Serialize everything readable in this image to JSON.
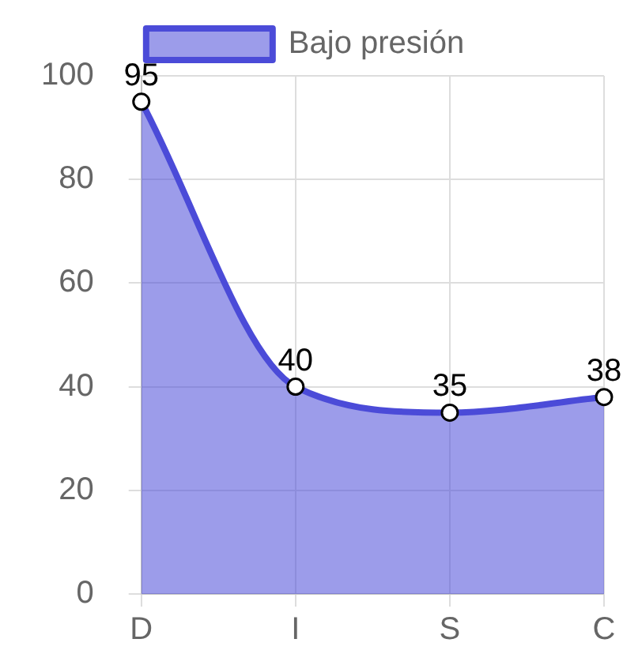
{
  "chart_data": {
    "type": "area",
    "categories": [
      "D",
      "I",
      "S",
      "C"
    ],
    "series": [
      {
        "name": "Bajo presión",
        "color": "#4b4bd8",
        "values": [
          95,
          40,
          35,
          38
        ]
      }
    ],
    "ylim": [
      0,
      100
    ],
    "yticks": [
      0,
      20,
      40,
      60,
      80,
      100
    ],
    "grid": true,
    "legend": "top",
    "marker": "circle",
    "data_labels": true
  }
}
